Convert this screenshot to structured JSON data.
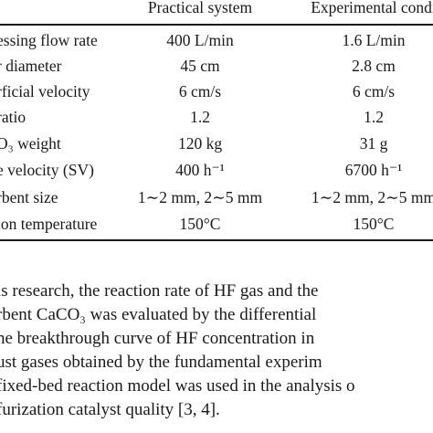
{
  "table": {
    "headers": {
      "practical": "Practical system",
      "experimental": "Experimental condi"
    },
    "rows": [
      {
        "label": "essing flow rate",
        "practical": "400 L/min",
        "experimental": "1.6 L/min"
      },
      {
        "label": "r diameter",
        "practical": "45 cm",
        "experimental": "2.8 cm"
      },
      {
        "label": "rficial velocity",
        "practical": "6 cm/s",
        "experimental": "6 cm/s"
      },
      {
        "label": "ratio",
        "practical": "1.2",
        "experimental": "1.2"
      },
      {
        "label": "O₃ weight",
        "practical": "120 kg",
        "experimental": "31 g"
      },
      {
        "label": "e velocity (SV)",
        "practical": "400 h⁻¹",
        "experimental": "6700 h⁻¹"
      },
      {
        "label": "rbent size",
        "practical": "1∼2 mm, 2∼5 mm",
        "experimental": "1∼2 mm, 2∼5 mm"
      },
      {
        "label": "ion temperature",
        "practical": "150°C",
        "experimental": "150°C"
      }
    ]
  },
  "paragraph": {
    "lines": [
      "is research, the reaction rate of HF gas and the",
      "rbent CaCO₃ was evaluated by the differential",
      "ne breakthrough curve of HF concentration in",
      "ust gases obtained by the fundamental experim",
      "fixed-bed reaction model was used in the analysis o",
      "furization catalyst quality [3, 4]."
    ]
  }
}
